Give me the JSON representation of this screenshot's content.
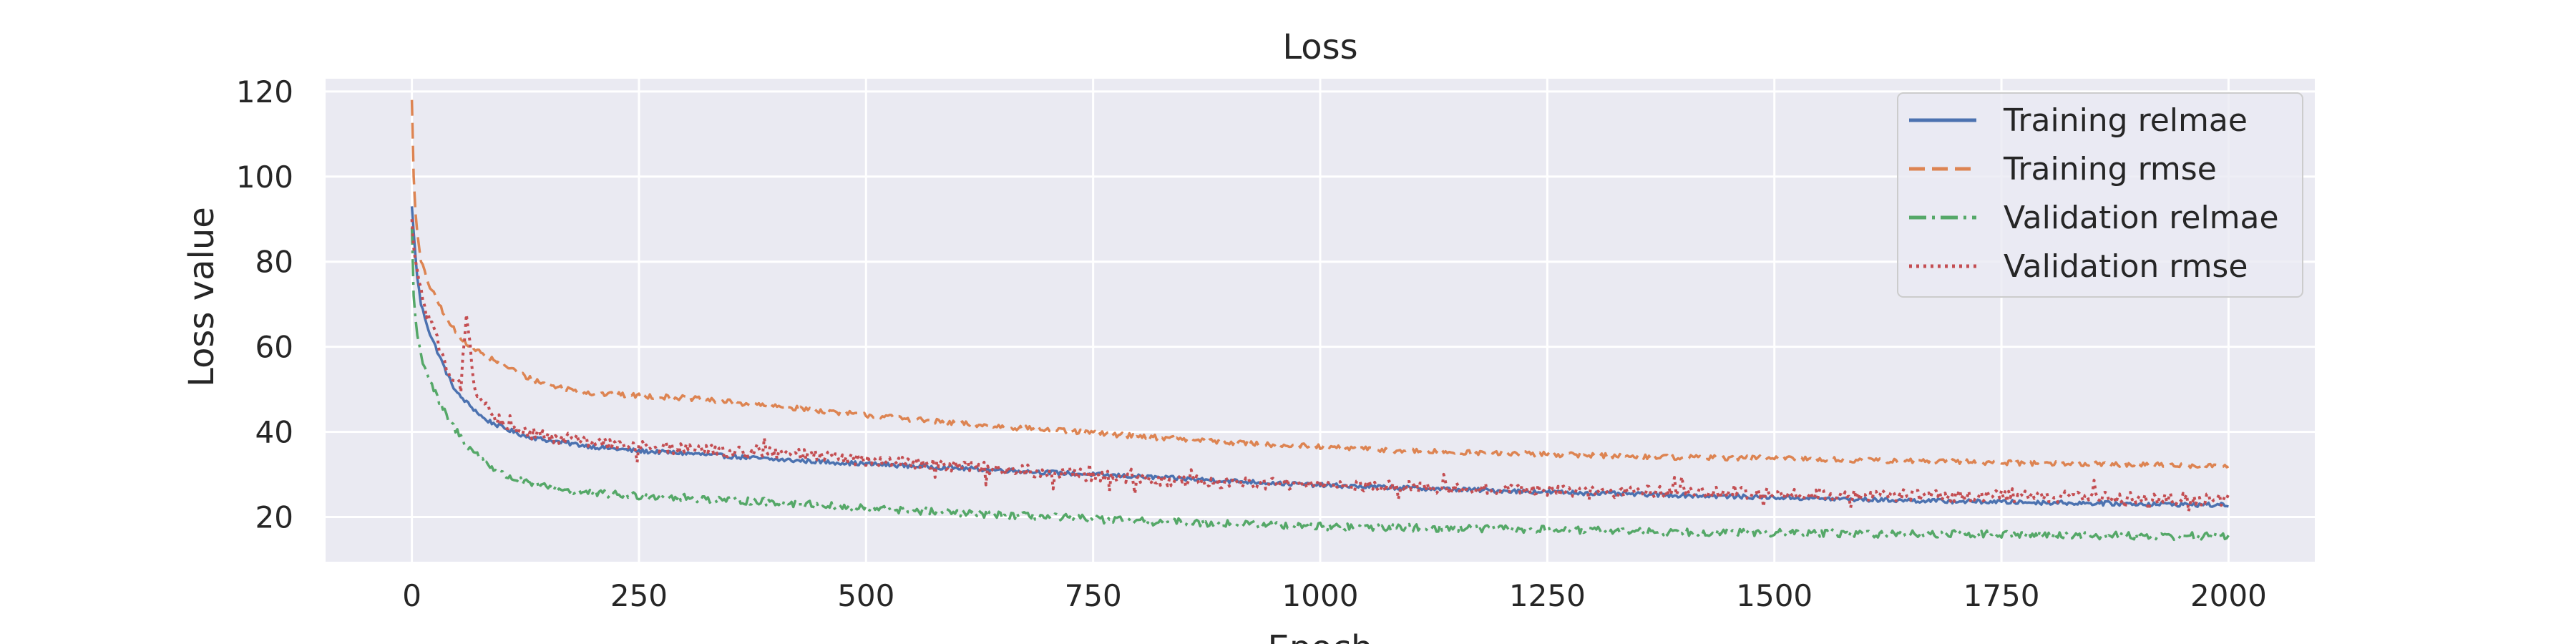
{
  "chart_data": {
    "type": "line",
    "title": "Loss",
    "xlabel": "Epoch",
    "ylabel": "Loss value",
    "xlim": [
      -95,
      2095
    ],
    "ylim": [
      9.5,
      123
    ],
    "xticks": [
      0,
      250,
      500,
      750,
      1000,
      1250,
      1500,
      1750,
      2000
    ],
    "yticks": [
      20,
      40,
      60,
      80,
      100,
      120
    ],
    "grid": true,
    "legend_position": "top-right",
    "series": [
      {
        "name": "Training relmae",
        "color": "#4c72b0",
        "linestyle": "solid",
        "x": [
          0,
          5,
          10,
          20,
          30,
          40,
          50,
          60,
          80,
          100,
          125,
          150,
          200,
          250,
          300,
          400,
          500,
          600,
          700,
          800,
          900,
          1000,
          1100,
          1200,
          1300,
          1400,
          1500,
          1600,
          1700,
          1800,
          1900,
          2000
        ],
        "y": [
          93,
          78,
          70,
          63,
          58,
          53,
          49,
          47,
          43,
          41,
          39,
          38,
          36.5,
          35.5,
          35,
          33.5,
          32.5,
          31.5,
          30.5,
          29.5,
          28.5,
          27.5,
          26.8,
          26.2,
          25.6,
          25.1,
          24.6,
          24.1,
          23.7,
          23.4,
          23.1,
          22.8
        ]
      },
      {
        "name": "Training rmse",
        "color": "#dd8452",
        "linestyle": "dashed",
        "x": [
          0,
          2,
          5,
          10,
          20,
          30,
          40,
          50,
          60,
          80,
          100,
          125,
          150,
          200,
          250,
          300,
          400,
          500,
          600,
          700,
          800,
          900,
          1000,
          1100,
          1200,
          1300,
          1400,
          1500,
          1600,
          1700,
          1800,
          1900,
          2000
        ],
        "y": [
          118,
          100,
          88,
          80,
          74,
          70,
          66,
          63,
          61,
          58,
          56,
          53,
          51,
          49,
          48.5,
          48,
          46,
          44,
          42,
          40.5,
          39,
          37.5,
          36.5,
          35.5,
          35,
          34.5,
          34,
          33.8,
          33.3,
          33,
          32.6,
          32.3,
          32
        ]
      },
      {
        "name": "Validation relmae",
        "color": "#55a868",
        "linestyle": "dashdot",
        "x": [
          0,
          2,
          5,
          10,
          20,
          30,
          40,
          50,
          60,
          80,
          100,
          125,
          150,
          200,
          250,
          300,
          400,
          500,
          600,
          700,
          800,
          900,
          1000,
          1100,
          1200,
          1300,
          1400,
          1500,
          1600,
          1700,
          1800,
          1900,
          2000
        ],
        "y": [
          88,
          72,
          64,
          58,
          52,
          47,
          43,
          40,
          37,
          33,
          30,
          28,
          27,
          25.5,
          25,
          24.5,
          23.5,
          22,
          21,
          20,
          19,
          18.5,
          17.8,
          17.5,
          17.2,
          16.8,
          16.5,
          16.3,
          16.1,
          16,
          15.8,
          15.6,
          15.5
        ]
      },
      {
        "name": "Validation rmse",
        "color": "#c44e52",
        "linestyle": "dotted",
        "x": [
          0,
          3,
          8,
          15,
          25,
          35,
          45,
          55,
          60,
          70,
          80,
          100,
          125,
          150,
          200,
          250,
          300,
          400,
          500,
          600,
          700,
          800,
          900,
          1000,
          1100,
          1200,
          1300,
          1400,
          1500,
          1600,
          1700,
          1800,
          1900,
          2000
        ],
        "y": [
          90,
          80,
          76,
          68,
          63,
          57,
          53,
          50,
          68,
          48,
          46,
          42,
          40,
          39,
          37.5,
          36.5,
          36,
          35,
          33.5,
          32,
          30.5,
          29,
          28,
          27.5,
          27,
          26.5,
          26,
          25.8,
          25.5,
          25.2,
          25,
          24.8,
          24.5,
          24
        ]
      }
    ]
  }
}
